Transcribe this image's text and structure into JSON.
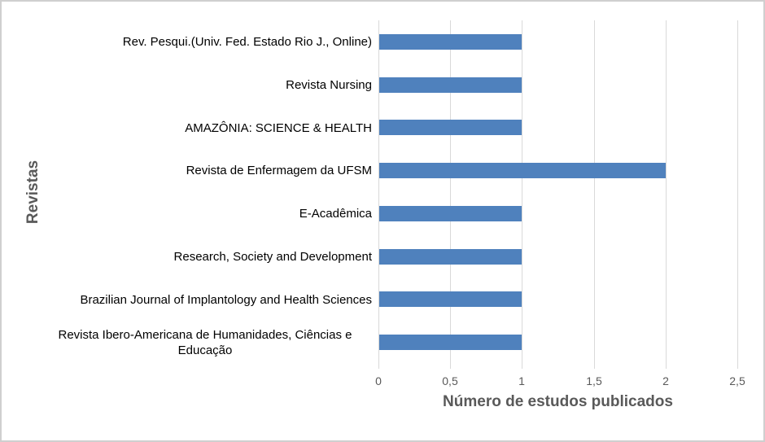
{
  "chart_data": {
    "type": "bar",
    "orientation": "horizontal",
    "title": "",
    "xlabel": "Número de estudos publicados",
    "ylabel": "Revistas",
    "categories": [
      "Rev. Pesqui.(Univ. Fed. Estado Rio J., Online)",
      "Revista Nursing",
      "AMAZÔNIA: SCIENCE & HEALTH",
      "Revista de Enfermagem da UFSM",
      "E-Acadêmica",
      "Research, Society and Development",
      "Brazilian Journal of Implantology and Health Sciences",
      "Revista Ibero-Americana de Humanidades, Ciências e Educação"
    ],
    "values": [
      1,
      1,
      1,
      2,
      1,
      1,
      1,
      1
    ],
    "xlim": [
      0,
      2.5
    ],
    "xtick_labels": [
      "0",
      "0,5",
      "1",
      "1,5",
      "2",
      "2,5"
    ],
    "xtick_values": [
      0,
      0.5,
      1,
      1.5,
      2,
      2.5
    ],
    "grid": "vertical-gridlines-on",
    "legend": "none",
    "colors": {
      "bar": "#4f81bd",
      "gridline": "#d9d9d9",
      "axis_text": "#595959",
      "category_text": "#000000",
      "frame_border": "#cfcfcf",
      "background": "#ffffff"
    }
  }
}
